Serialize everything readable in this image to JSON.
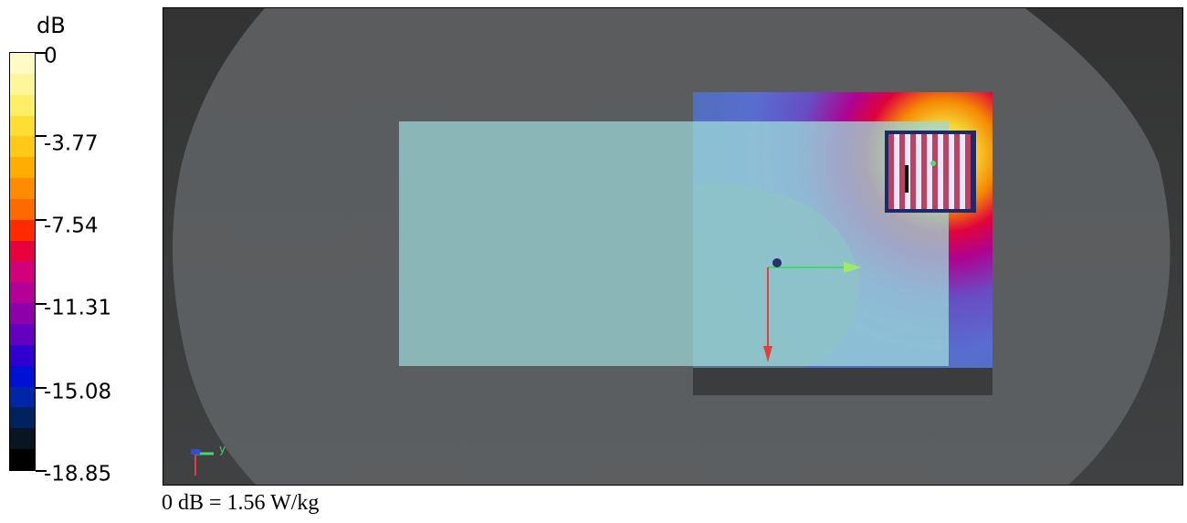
{
  "legend": {
    "unit": "dB",
    "ticks": [
      "0",
      "-3.77",
      "-7.54",
      "-11.31",
      "-15.08",
      "-18.85"
    ],
    "colors": [
      "#fffbc7",
      "#fff59a",
      "#ffee66",
      "#ffdd33",
      "#ffc917",
      "#ffad00",
      "#ff8c00",
      "#ff6a00",
      "#ff2a00",
      "#e8003c",
      "#d2007a",
      "#b40096",
      "#8e00aa",
      "#6400c0",
      "#3000d0",
      "#0010d4",
      "#0026a8",
      "#00225e",
      "#0a1522",
      "#000000"
    ]
  },
  "viewport": {
    "axes_label": "y",
    "background": "#333333",
    "phantom_color": "#5a5c5e",
    "plate_color": "#9dd8da"
  },
  "footnote": "0 dB = 1.56 W/kg"
}
